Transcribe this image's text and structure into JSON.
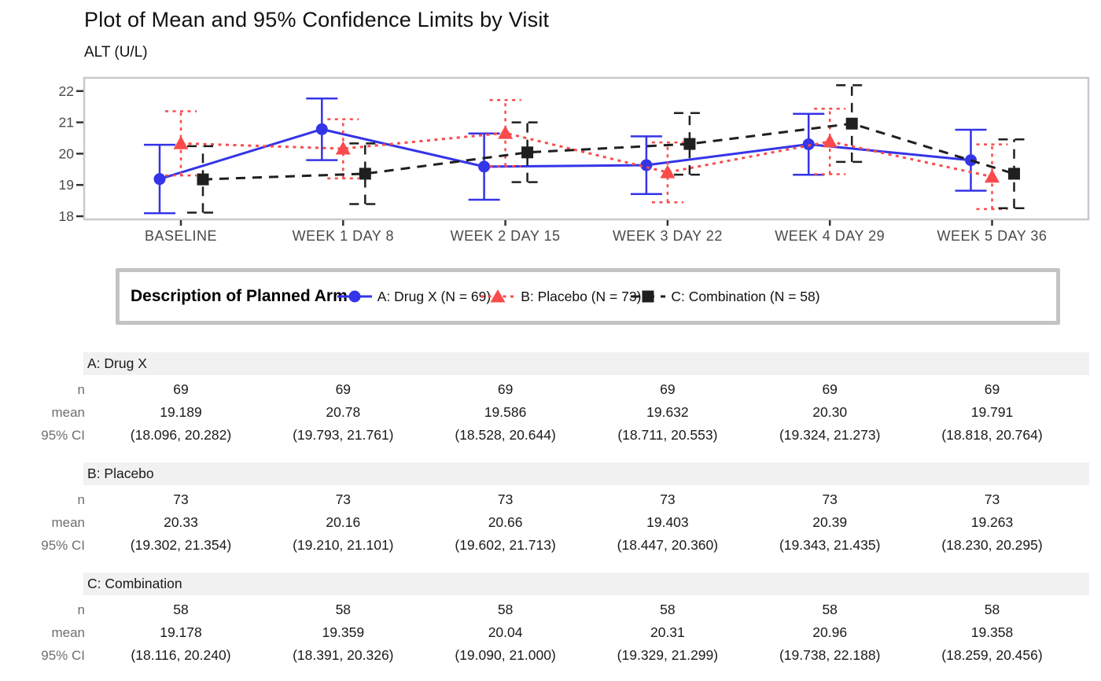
{
  "title": "Plot of Mean and 95% Confidence Limits by Visit",
  "subtitle": "ALT (U/L)",
  "legend": {
    "heading": "Description of Planned Arm",
    "items": [
      {
        "label": "A: Drug X (N = 69)",
        "marker": "circle",
        "line": "solid",
        "color": "#3434e8"
      },
      {
        "label": "B: Placebo (N = 73)",
        "marker": "triangle",
        "line": "dotted",
        "color": "#f94b4b"
      },
      {
        "label": "C: Combination (N = 58)",
        "marker": "square",
        "line": "dashed",
        "color": "#1f1f1f"
      }
    ]
  },
  "chart_data": {
    "type": "line",
    "title": "Plot of Mean and 95% Confidence Limits by Visit",
    "ylabel": "ALT (U/L)",
    "categories": [
      "BASELINE",
      "WEEK 1 DAY 8",
      "WEEK 2 DAY 15",
      "WEEK 3 DAY 22",
      "WEEK 4 DAY 29",
      "WEEK 5 DAY 36"
    ],
    "yticks": [
      18,
      19,
      20,
      21,
      22
    ],
    "ylim": [
      17.88,
      22.42
    ],
    "grid": false,
    "legend_position": "bottom-box",
    "error_bars": "95% confidence limits",
    "series": [
      {
        "name": "A: Drug X (N = 69)",
        "color": "#3434e8",
        "marker": "circle",
        "line": "solid",
        "offset": -27,
        "mean": [
          19.189,
          20.78,
          19.586,
          19.632,
          20.3,
          19.791
        ],
        "ci_low": [
          18.096,
          19.793,
          18.528,
          18.711,
          19.324,
          18.818
        ],
        "ci_high": [
          20.282,
          21.761,
          20.644,
          20.553,
          21.273,
          20.764
        ]
      },
      {
        "name": "B: Placebo (N = 73)",
        "color": "#f94b4b",
        "marker": "triangle",
        "line": "dotted",
        "offset": 0,
        "mean": [
          20.33,
          20.16,
          20.66,
          19.403,
          20.39,
          19.263
        ],
        "ci_low": [
          19.302,
          19.21,
          19.602,
          18.447,
          19.343,
          18.23
        ],
        "ci_high": [
          21.354,
          21.101,
          21.713,
          20.36,
          21.435,
          20.295
        ]
      },
      {
        "name": "C: Combination (N = 58)",
        "color": "#1f1f1f",
        "marker": "square",
        "line": "dashed",
        "offset": 28,
        "mean": [
          19.178,
          19.359,
          20.04,
          20.31,
          20.96,
          19.358
        ],
        "ci_low": [
          18.116,
          18.391,
          19.09,
          19.329,
          19.738,
          18.259
        ],
        "ci_high": [
          20.24,
          20.326,
          21.0,
          21.299,
          22.188,
          20.456
        ]
      }
    ]
  },
  "table": {
    "row_labels": [
      "n",
      "mean",
      "95% CI"
    ],
    "sections": [
      {
        "label": "A: Drug X",
        "n": [
          "69",
          "69",
          "69",
          "69",
          "69",
          "69"
        ],
        "mean": [
          "19.189",
          "20.78",
          "19.586",
          "19.632",
          "20.30",
          "19.791"
        ],
        "ci": [
          "(18.096, 20.282)",
          "(19.793, 21.761)",
          "(18.528, 20.644)",
          "(18.711, 20.553)",
          "(19.324, 21.273)",
          "(18.818, 20.764)"
        ]
      },
      {
        "label": "B: Placebo",
        "n": [
          "73",
          "73",
          "73",
          "73",
          "73",
          "73"
        ],
        "mean": [
          "20.33",
          "20.16",
          "20.66",
          "19.403",
          "20.39",
          "19.263"
        ],
        "ci": [
          "(19.302, 21.354)",
          "(19.210, 21.101)",
          "(19.602, 21.713)",
          "(18.447, 20.360)",
          "(19.343, 21.435)",
          "(18.230, 20.295)"
        ]
      },
      {
        "label": "C: Combination",
        "n": [
          "58",
          "58",
          "58",
          "58",
          "58",
          "58"
        ],
        "mean": [
          "19.178",
          "19.359",
          "20.04",
          "20.31",
          "20.96",
          "19.358"
        ],
        "ci": [
          "(18.116, 20.240)",
          "(18.391, 20.326)",
          "(19.090, 21.000)",
          "(19.329, 21.299)",
          "(19.738, 22.188)",
          "(18.259, 20.456)"
        ]
      }
    ]
  }
}
